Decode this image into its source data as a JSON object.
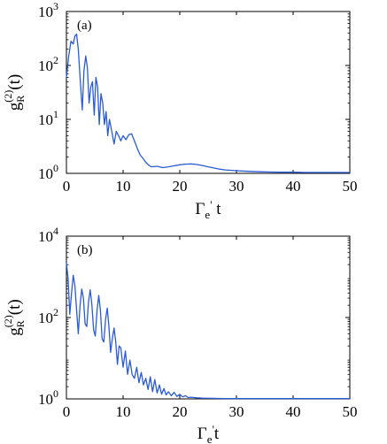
{
  "chart_data": [
    {
      "type": "line",
      "panel_label": "(a)",
      "xlabel": "Γe' t",
      "ylabel": "g_R^(2)(t)",
      "y_scale": "log",
      "xlim": [
        0,
        50
      ],
      "ylim": [
        1,
        1000
      ],
      "x_ticks": [
        0,
        10,
        20,
        30,
        40,
        50
      ],
      "y_ticks": [
        {
          "value": 1,
          "base": "10",
          "exp": "0"
        },
        {
          "value": 10,
          "base": "10",
          "exp": "1"
        },
        {
          "value": 100,
          "base": "10",
          "exp": "2"
        },
        {
          "value": 1000,
          "base": "10",
          "exp": "3"
        }
      ],
      "grid": false,
      "line_color": "#2a5bd7",
      "series": [
        {
          "x": [
            0,
            0.4,
            0.8,
            1.2,
            1.5,
            1.8,
            2.1,
            2.4,
            2.8,
            3.1,
            3.4,
            3.7,
            4.0,
            4.3,
            4.6,
            4.9,
            5.2,
            5.5,
            5.8,
            6.1,
            6.4,
            6.7,
            7.0,
            7.3,
            7.6,
            8.0,
            8.4,
            8.8,
            9.2,
            9.6,
            10.0,
            10.5,
            11.0,
            11.5,
            12.0,
            12.5,
            13.0,
            13.5,
            14.0,
            14.5,
            15.0,
            16.0,
            17.0,
            18.0,
            19.0,
            20.0,
            21.0,
            22.0,
            23.0,
            24.0,
            25.0,
            26.0,
            27.0,
            28.0,
            30.0,
            32.0,
            34.0,
            36.0,
            38.0,
            40.0,
            42.0,
            44.0,
            46.0,
            48.0,
            50.0
          ],
          "y": [
            60,
            150,
            280,
            250,
            350,
            380,
            200,
            60,
            15,
            80,
            150,
            90,
            20,
            40,
            50,
            12,
            60,
            40,
            8,
            30,
            20,
            8,
            14,
            5,
            10,
            6,
            3.5,
            6,
            5,
            4,
            5,
            4.2,
            5.2,
            5.4,
            4.0,
            2.9,
            2.2,
            1.9,
            1.6,
            1.42,
            1.32,
            1.35,
            1.28,
            1.32,
            1.38,
            1.44,
            1.48,
            1.5,
            1.46,
            1.4,
            1.32,
            1.26,
            1.2,
            1.16,
            1.12,
            1.09,
            1.07,
            1.06,
            1.05,
            1.05,
            1.04,
            1.04,
            1.04,
            1.04,
            1.04
          ]
        }
      ]
    },
    {
      "type": "line",
      "panel_label": "(b)",
      "xlabel": "Γe't",
      "ylabel": "g_R^(2)(t)",
      "y_scale": "log",
      "xlim": [
        0,
        50
      ],
      "ylim": [
        1,
        10000
      ],
      "x_ticks": [
        0,
        10,
        20,
        30,
        40,
        50
      ],
      "y_ticks": [
        {
          "value": 1,
          "base": "10",
          "exp": "0"
        },
        {
          "value": 100,
          "base": "10",
          "exp": "2"
        },
        {
          "value": 10000,
          "base": "10",
          "exp": "4"
        }
      ],
      "grid": false,
      "line_color": "#2a5bd7",
      "series": [
        {
          "x": [
            0,
            0.3,
            0.6,
            0.9,
            1.2,
            1.5,
            1.8,
            2.1,
            2.4,
            2.7,
            3.0,
            3.3,
            3.6,
            3.9,
            4.2,
            4.5,
            4.8,
            5.1,
            5.4,
            5.7,
            6.0,
            6.3,
            6.6,
            6.9,
            7.2,
            7.5,
            7.8,
            8.1,
            8.4,
            8.7,
            9.0,
            9.3,
            9.6,
            10.0,
            10.4,
            10.8,
            11.2,
            11.6,
            12.0,
            12.4,
            12.8,
            13.2,
            13.6,
            14.0,
            14.4,
            14.8,
            15.2,
            15.6,
            16.0,
            16.4,
            16.8,
            17.2,
            17.6,
            18.0,
            18.5,
            19.0,
            19.5,
            20.0,
            20.5,
            21.0,
            21.5,
            22.0,
            23.0,
            24.0,
            26.0,
            28.0,
            30.0,
            35.0,
            40.0,
            45.0,
            50.0
          ],
          "y": [
            2200,
            900,
            120,
            400,
            1100,
            600,
            150,
            40,
            200,
            500,
            300,
            70,
            60,
            250,
            480,
            200,
            50,
            35,
            150,
            350,
            150,
            30,
            25,
            90,
            170,
            60,
            14,
            30,
            55,
            25,
            7,
            20,
            18,
            6,
            15,
            4,
            9,
            4,
            3.2,
            6,
            2.5,
            4.5,
            2.2,
            3.2,
            1.7,
            3.5,
            1.5,
            3.0,
            1.4,
            2.2,
            1.3,
            1.8,
            1.25,
            1.5,
            1.2,
            1.45,
            1.15,
            1.3,
            1.12,
            1.2,
            1.08,
            1.1,
            1.06,
            1.04,
            1.03,
            1.02,
            1.02,
            1.02,
            1.02,
            1.02,
            1.02
          ]
        }
      ]
    }
  ]
}
